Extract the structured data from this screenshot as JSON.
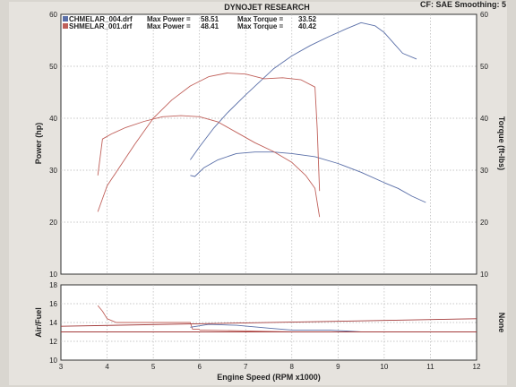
{
  "header": {
    "title": "DYNOJET RESEARCH",
    "settings": "CF: SAE  Smoothing: 5"
  },
  "legend": [
    {
      "file": "CHMELAR_004.drf",
      "power_label": "Max Power =",
      "power_value": "58.51",
      "torque_label": "Max Torque =",
      "torque_value": "33.52",
      "color": "#5a6fa8"
    },
    {
      "file": "SHMELAR_001.drf",
      "power_label": "Max Power =",
      "power_value": "48.41",
      "torque_label": "Max Torque =",
      "torque_value": "40.42",
      "color": "#c0605a"
    }
  ],
  "colors": {
    "run1": "#5a6fa8",
    "run2": "#c0605a",
    "ref_line": "#a33a3a",
    "plot_bg": "#ffffff",
    "grid": "#b5b5b5"
  },
  "chart_data": [
    {
      "type": "line",
      "name": "main",
      "ylabel_left": "Power (hp)",
      "ylabel_right": "Torque (ft-lbs)",
      "ylim": [
        10,
        60
      ],
      "yticks": [
        10,
        20,
        30,
        40,
        50,
        60
      ],
      "xlim": [
        3,
        12
      ],
      "grid": true,
      "legend_position": "top-left",
      "series": [
        {
          "name": "CHMELAR_004.drf",
          "measure": "power",
          "color": "#5a6fa8",
          "x": [
            5.8,
            6.0,
            6.3,
            6.6,
            7.0,
            7.3,
            7.6,
            8.0,
            8.4,
            8.8,
            9.2,
            9.5,
            9.8,
            10.0,
            10.2,
            10.4,
            10.7
          ],
          "y": [
            32,
            34.5,
            38,
            41,
            44.5,
            47,
            49.5,
            52,
            54,
            55.7,
            57.3,
            58.4,
            57.8,
            56.5,
            54.5,
            52.5,
            51.4
          ]
        },
        {
          "name": "CHMELAR_004.drf",
          "measure": "torque",
          "color": "#5a6fa8",
          "x": [
            5.8,
            5.9,
            6.1,
            6.4,
            6.8,
            7.2,
            7.6,
            8.0,
            8.5,
            9.0,
            9.5,
            10.0,
            10.3,
            10.6,
            10.9
          ],
          "y": [
            29,
            28.8,
            30.5,
            32,
            33.2,
            33.5,
            33.5,
            33.2,
            32.6,
            31.3,
            29.6,
            27.6,
            26.5,
            25,
            23.8
          ]
        },
        {
          "name": "SHMELAR_001.drf",
          "measure": "power",
          "color": "#c0605a",
          "x": [
            3.8,
            4.0,
            4.3,
            4.6,
            5.0,
            5.4,
            5.8,
            6.2,
            6.6,
            7.0,
            7.4,
            7.8,
            8.2,
            8.5,
            8.55,
            8.6
          ],
          "y": [
            22,
            27,
            31,
            35,
            40,
            43.5,
            46.2,
            48,
            48.7,
            48.5,
            47.6,
            47.8,
            47.4,
            46,
            38,
            26
          ]
        },
        {
          "name": "SHMELAR_001.drf",
          "measure": "torque",
          "color": "#c0605a",
          "x": [
            3.8,
            3.9,
            4.1,
            4.4,
            4.8,
            5.2,
            5.6,
            6.0,
            6.4,
            6.8,
            7.2,
            7.6,
            8.0,
            8.3,
            8.5,
            8.6
          ],
          "y": [
            29,
            36,
            37,
            38.2,
            39.4,
            40.3,
            40.5,
            40.3,
            39.3,
            37.3,
            35.3,
            33.6,
            31.5,
            29,
            26.5,
            21
          ]
        }
      ]
    },
    {
      "type": "line",
      "name": "air-fuel",
      "ylabel_left": "Air/Fuel",
      "ylabel_right": "None",
      "xlabel": "Engine Speed (RPM x1000)",
      "ylim": [
        10,
        18
      ],
      "yticks": [
        10,
        12,
        14,
        16,
        18
      ],
      "xlim": [
        3,
        12
      ],
      "xticks": [
        3,
        4,
        5,
        6,
        7,
        8,
        9,
        10,
        11,
        12
      ],
      "grid": true,
      "series": [
        {
          "name": "SHMELAR_001.drf",
          "color": "#c0605a",
          "x": [
            3.8,
            3.9,
            4.0,
            4.2,
            4.5,
            5.0,
            5.5,
            5.8,
            5.85,
            6.0
          ],
          "y": [
            15.8,
            15.2,
            14.4,
            14.0,
            14.0,
            14.0,
            14.0,
            14.0,
            13.3,
            13.3
          ]
        },
        {
          "name": "CHMELAR_004.drf",
          "color": "#5a6fa8",
          "x": [
            5.8,
            6.2,
            6.8,
            7.5,
            8.0,
            8.8,
            9.5,
            10.0,
            10.7
          ],
          "y": [
            13.5,
            13.8,
            13.7,
            13.4,
            13.2,
            13.2,
            13.0,
            13.0,
            13.0
          ]
        },
        {
          "name": "SHMELAR_001.drf",
          "color": "#c0605a",
          "x": [
            6.0,
            7.0,
            8.0,
            8.6
          ],
          "y": [
            13.2,
            13.1,
            13.0,
            13.0
          ]
        },
        {
          "name": "ref-low",
          "color": "#a33a3a",
          "x": [
            3,
            12
          ],
          "y": [
            13.0,
            13.0
          ]
        },
        {
          "name": "ref-high",
          "color": "#a33a3a",
          "x": [
            3,
            12
          ],
          "y": [
            13.6,
            14.4
          ]
        }
      ]
    }
  ]
}
